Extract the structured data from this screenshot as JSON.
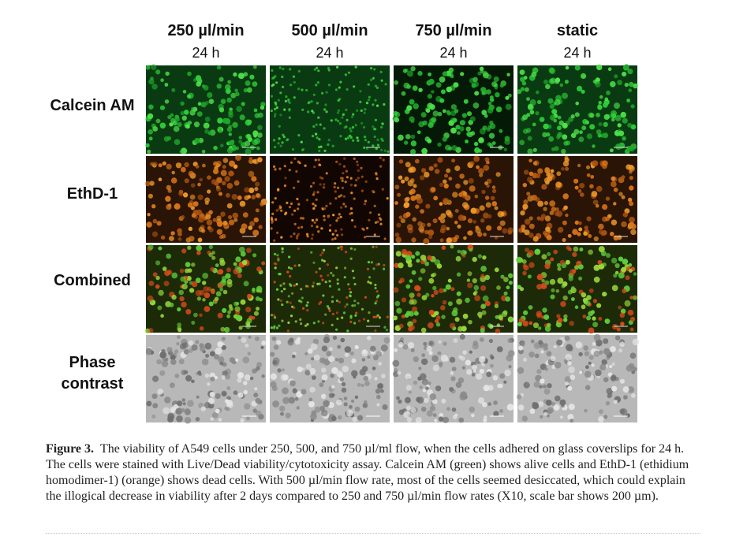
{
  "figure": {
    "columns": [
      {
        "title": "250 µl/min",
        "subtitle": "24 h"
      },
      {
        "title": "500 µl/min",
        "subtitle": "24 h"
      },
      {
        "title": "750 µl/min",
        "subtitle": "24 h"
      },
      {
        "title": "static",
        "subtitle": "24 h"
      }
    ],
    "rows": [
      "Calcein AM",
      "EthD-1",
      "Combined",
      "Phase contrast"
    ],
    "caption": {
      "label": "Figure 3.",
      "text": "The viability of A549 cells under 250, 500, and 750 µl/ml flow, when the cells adhered on glass coverslips for 24 h. The cells were stained with Live/Dead viability/cytotoxicity assay. Calcein AM (green) shows alive cells and EthD-1 (ethidium homodimer-1) (orange) shows dead cells. With 500 µl/min flow rate, most of the cells seemed desiccated, which could explain the illogical decrease in viability after 2 days compared to 250 and 750 µl/min flow rates (X10, scale bar shows 200 µm)."
    }
  }
}
